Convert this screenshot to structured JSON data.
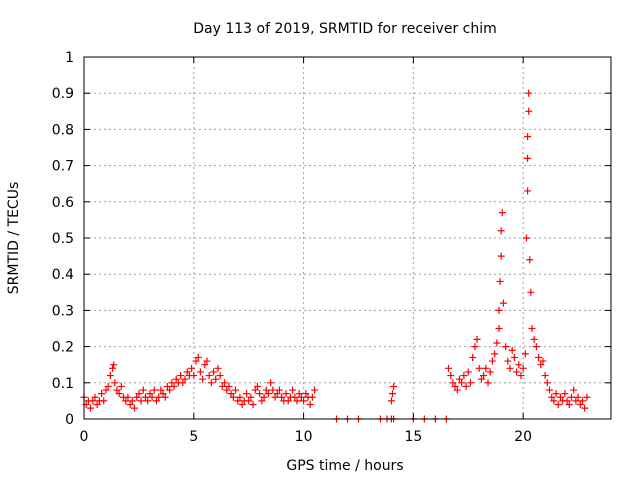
{
  "chart_data": {
    "type": "scatter",
    "title": "Day 113 of 2019, SRMTID for receiver chim",
    "xlabel": "GPS time / hours",
    "ylabel": "SRMTID / TECUs",
    "xlim": [
      0,
      24
    ],
    "ylim": [
      0,
      1
    ],
    "grid": true,
    "marker": "+",
    "xticks": [
      0,
      5,
      10,
      15,
      20
    ],
    "xtick_labels": [
      "0",
      "5",
      "10",
      "15",
      "20"
    ],
    "yticks": [
      0,
      0.1,
      0.2,
      0.3,
      0.4,
      0.5,
      0.6,
      0.7,
      0.8,
      0.9,
      1
    ],
    "ytick_labels": [
      "0",
      "0.1",
      "0.2",
      "0.3",
      "0.4",
      "0.5",
      "0.6",
      "0.7",
      "0.8",
      "0.9",
      "1"
    ],
    "colors": {
      "points": "#ff0000",
      "grid": "#a0a0a0",
      "axes": "#000000"
    },
    "series": [
      {
        "name": "SRMTID",
        "points": [
          [
            0.0,
            0.06
          ],
          [
            0.1,
            0.04
          ],
          [
            0.2,
            0.05
          ],
          [
            0.3,
            0.03
          ],
          [
            0.4,
            0.05
          ],
          [
            0.5,
            0.06
          ],
          [
            0.6,
            0.04
          ],
          [
            0.7,
            0.05
          ],
          [
            0.8,
            0.07
          ],
          [
            0.9,
            0.05
          ],
          [
            1.0,
            0.08
          ],
          [
            1.1,
            0.09
          ],
          [
            1.2,
            0.12
          ],
          [
            1.3,
            0.14
          ],
          [
            1.35,
            0.15
          ],
          [
            1.4,
            0.1
          ],
          [
            1.5,
            0.08
          ],
          [
            1.6,
            0.07
          ],
          [
            1.7,
            0.09
          ],
          [
            1.8,
            0.06
          ],
          [
            1.9,
            0.05
          ],
          [
            2.0,
            0.06
          ],
          [
            2.1,
            0.04
          ],
          [
            2.2,
            0.05
          ],
          [
            2.3,
            0.03
          ],
          [
            2.4,
            0.06
          ],
          [
            2.5,
            0.07
          ],
          [
            2.6,
            0.05
          ],
          [
            2.7,
            0.08
          ],
          [
            2.8,
            0.06
          ],
          [
            2.9,
            0.05
          ],
          [
            3.0,
            0.07
          ],
          [
            3.1,
            0.06
          ],
          [
            3.2,
            0.08
          ],
          [
            3.3,
            0.05
          ],
          [
            3.4,
            0.06
          ],
          [
            3.5,
            0.08
          ],
          [
            3.6,
            0.07
          ],
          [
            3.7,
            0.06
          ],
          [
            3.8,
            0.09
          ],
          [
            3.9,
            0.08
          ],
          [
            4.0,
            0.1
          ],
          [
            4.1,
            0.09
          ],
          [
            4.2,
            0.11
          ],
          [
            4.3,
            0.1
          ],
          [
            4.4,
            0.12
          ],
          [
            4.5,
            0.1
          ],
          [
            4.6,
            0.11
          ],
          [
            4.7,
            0.13
          ],
          [
            4.8,
            0.12
          ],
          [
            4.9,
            0.14
          ],
          [
            5.0,
            0.12
          ],
          [
            5.1,
            0.16
          ],
          [
            5.2,
            0.17
          ],
          [
            5.3,
            0.13
          ],
          [
            5.4,
            0.11
          ],
          [
            5.5,
            0.15
          ],
          [
            5.6,
            0.16
          ],
          [
            5.7,
            0.12
          ],
          [
            5.8,
            0.1
          ],
          [
            5.9,
            0.13
          ],
          [
            6.0,
            0.11
          ],
          [
            6.1,
            0.14
          ],
          [
            6.2,
            0.12
          ],
          [
            6.3,
            0.09
          ],
          [
            6.4,
            0.1
          ],
          [
            6.5,
            0.08
          ],
          [
            6.6,
            0.09
          ],
          [
            6.7,
            0.07
          ],
          [
            6.8,
            0.06
          ],
          [
            6.9,
            0.08
          ],
          [
            7.0,
            0.05
          ],
          [
            7.1,
            0.06
          ],
          [
            7.2,
            0.04
          ],
          [
            7.3,
            0.05
          ],
          [
            7.4,
            0.07
          ],
          [
            7.5,
            0.05
          ],
          [
            7.6,
            0.06
          ],
          [
            7.7,
            0.04
          ],
          [
            7.8,
            0.08
          ],
          [
            7.9,
            0.09
          ],
          [
            8.0,
            0.07
          ],
          [
            8.1,
            0.05
          ],
          [
            8.2,
            0.06
          ],
          [
            8.3,
            0.08
          ],
          [
            8.4,
            0.07
          ],
          [
            8.5,
            0.1
          ],
          [
            8.6,
            0.08
          ],
          [
            8.7,
            0.06
          ],
          [
            8.8,
            0.07
          ],
          [
            8.9,
            0.08
          ],
          [
            9.0,
            0.06
          ],
          [
            9.1,
            0.05
          ],
          [
            9.2,
            0.07
          ],
          [
            9.3,
            0.05
          ],
          [
            9.4,
            0.06
          ],
          [
            9.5,
            0.08
          ],
          [
            9.6,
            0.06
          ],
          [
            9.7,
            0.05
          ],
          [
            9.8,
            0.07
          ],
          [
            9.9,
            0.06
          ],
          [
            10.0,
            0.05
          ],
          [
            10.1,
            0.07
          ],
          [
            10.2,
            0.06
          ],
          [
            10.3,
            0.04
          ],
          [
            10.4,
            0.06
          ],
          [
            10.5,
            0.08
          ],
          [
            11.5,
            0.0
          ],
          [
            12.0,
            0.0
          ],
          [
            12.5,
            0.0
          ],
          [
            13.5,
            0.0
          ],
          [
            13.8,
            0.0
          ],
          [
            14.0,
            0.0
          ],
          [
            14.0,
            0.05
          ],
          [
            14.05,
            0.07
          ],
          [
            14.1,
            0.09
          ],
          [
            14.1,
            0.0
          ],
          [
            15.0,
            0.0
          ],
          [
            15.5,
            0.0
          ],
          [
            16.0,
            0.0
          ],
          [
            16.5,
            0.0
          ],
          [
            16.6,
            0.14
          ],
          [
            16.7,
            0.12
          ],
          [
            16.8,
            0.1
          ],
          [
            16.9,
            0.09
          ],
          [
            17.0,
            0.08
          ],
          [
            17.1,
            0.11
          ],
          [
            17.2,
            0.1
          ],
          [
            17.3,
            0.12
          ],
          [
            17.4,
            0.09
          ],
          [
            17.5,
            0.13
          ],
          [
            17.6,
            0.1
          ],
          [
            17.7,
            0.17
          ],
          [
            17.8,
            0.2
          ],
          [
            17.9,
            0.22
          ],
          [
            18.0,
            0.14
          ],
          [
            18.1,
            0.11
          ],
          [
            18.2,
            0.12
          ],
          [
            18.3,
            0.14
          ],
          [
            18.4,
            0.1
          ],
          [
            18.5,
            0.13
          ],
          [
            18.6,
            0.16
          ],
          [
            18.7,
            0.18
          ],
          [
            18.8,
            0.21
          ],
          [
            18.9,
            0.25
          ],
          [
            18.9,
            0.3
          ],
          [
            18.95,
            0.38
          ],
          [
            19.0,
            0.45
          ],
          [
            19.0,
            0.52
          ],
          [
            19.05,
            0.57
          ],
          [
            19.1,
            0.32
          ],
          [
            19.2,
            0.2
          ],
          [
            19.3,
            0.16
          ],
          [
            19.4,
            0.14
          ],
          [
            19.5,
            0.19
          ],
          [
            19.6,
            0.17
          ],
          [
            19.7,
            0.13
          ],
          [
            19.8,
            0.15
          ],
          [
            19.9,
            0.12
          ],
          [
            20.0,
            0.14
          ],
          [
            20.1,
            0.18
          ],
          [
            20.15,
            0.5
          ],
          [
            20.2,
            0.63
          ],
          [
            20.2,
            0.72
          ],
          [
            20.2,
            0.78
          ],
          [
            20.25,
            0.85
          ],
          [
            20.25,
            0.9
          ],
          [
            20.3,
            0.44
          ],
          [
            20.35,
            0.35
          ],
          [
            20.4,
            0.25
          ],
          [
            20.5,
            0.22
          ],
          [
            20.6,
            0.2
          ],
          [
            20.7,
            0.17
          ],
          [
            20.8,
            0.15
          ],
          [
            20.9,
            0.16
          ],
          [
            21.0,
            0.12
          ],
          [
            21.1,
            0.1
          ],
          [
            21.2,
            0.08
          ],
          [
            21.3,
            0.06
          ],
          [
            21.4,
            0.05
          ],
          [
            21.5,
            0.07
          ],
          [
            21.6,
            0.04
          ],
          [
            21.7,
            0.06
          ],
          [
            21.8,
            0.05
          ],
          [
            21.9,
            0.07
          ],
          [
            22.0,
            0.05
          ],
          [
            22.1,
            0.04
          ],
          [
            22.2,
            0.06
          ],
          [
            22.3,
            0.08
          ],
          [
            22.4,
            0.05
          ],
          [
            22.5,
            0.06
          ],
          [
            22.6,
            0.04
          ],
          [
            22.7,
            0.05
          ],
          [
            22.8,
            0.03
          ],
          [
            22.9,
            0.06
          ]
        ]
      }
    ]
  }
}
